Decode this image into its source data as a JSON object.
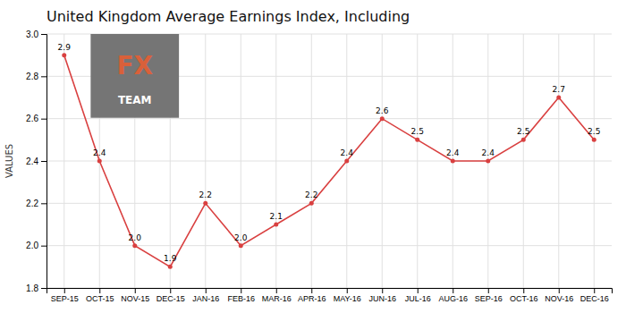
{
  "chart_data": {
    "type": "line",
    "title": "United Kingdom Average Earnings Index, Including",
    "categories": [
      "SEP-15",
      "OCT-15",
      "NOV-15",
      "DEC-15",
      "JAN-16",
      "FEB-16",
      "MAR-16",
      "APR-16",
      "MAY-16",
      "JUN-16",
      "JUL-16",
      "AUG-16",
      "SEP-16",
      "OCT-16",
      "NOV-16",
      "DEC-16"
    ],
    "values": [
      2.9,
      2.4,
      2.0,
      1.9,
      2.2,
      2.0,
      2.1,
      2.2,
      2.4,
      2.6,
      2.5,
      2.4,
      2.4,
      2.5,
      2.7,
      2.5
    ],
    "value_labels": [
      "2.9",
      "2.4",
      "2.0",
      "1.9",
      "2.2",
      "2.0",
      "2.1",
      "2.2",
      "2.4",
      "2.6",
      "2.5",
      "2.4",
      "2.4",
      "2.5",
      "2.7",
      "2.5"
    ],
    "color": "#d94040",
    "marker": "circle",
    "ylabel": "VALUES",
    "ylim": [
      1.8,
      3.0
    ],
    "yticks": [
      1.8,
      {
        "value": 2.0,
        "label": "2.0"
      },
      2.2,
      2.4,
      2.6,
      2.8,
      {
        "value": 3.0,
        "label": "3.0"
      }
    ],
    "grid": true,
    "data_labels": true,
    "annotations": [
      "FX",
      "TEAM"
    ]
  }
}
